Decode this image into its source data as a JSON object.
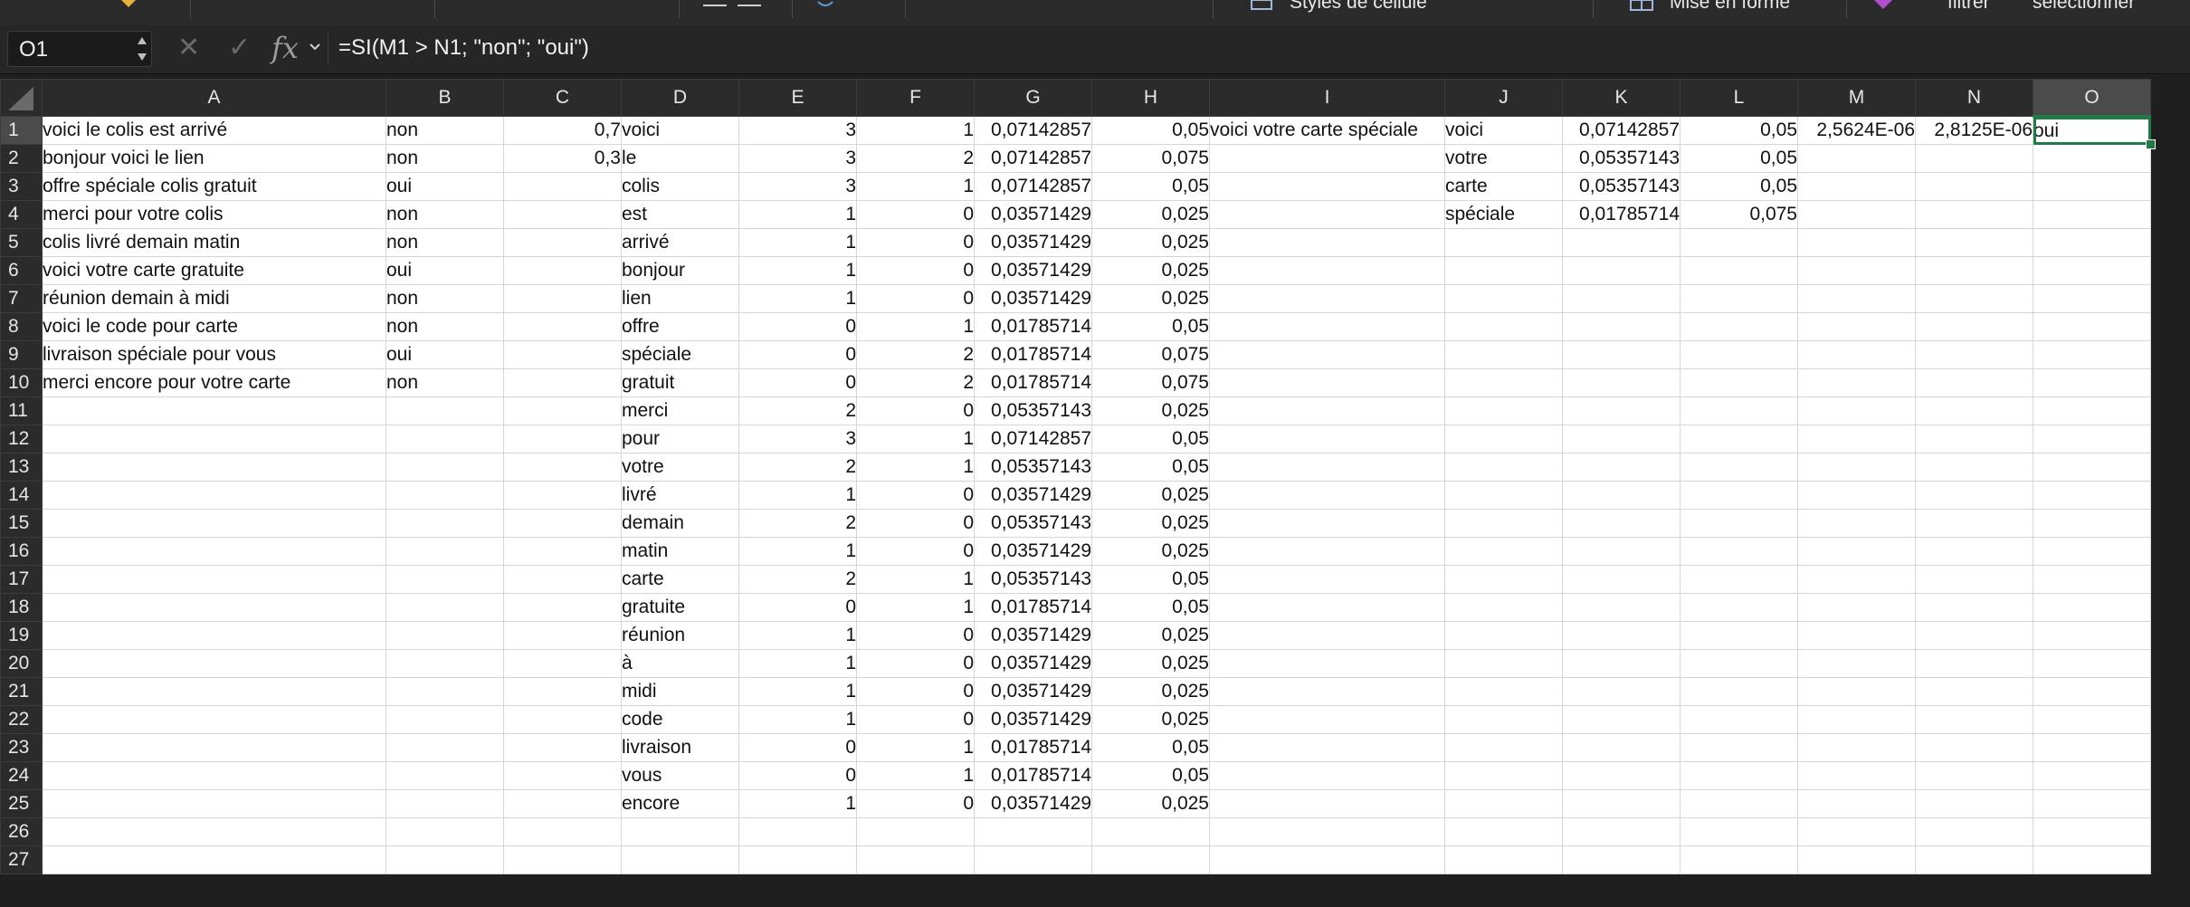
{
  "ribbon": {
    "cell_styles_label": "Styles de cellule",
    "format_as_table_label": "Mise en forme",
    "filter_label": "filtrer",
    "select_label": "sélectionner"
  },
  "formula_bar": {
    "name_box": "O1",
    "formula": "=SI(M1 > N1; \"non\"; \"oui\")"
  },
  "columns": [
    "A",
    "B",
    "C",
    "D",
    "E",
    "F",
    "G",
    "H",
    "I",
    "J",
    "K",
    "L",
    "M",
    "N",
    "O"
  ],
  "selected_column": "O",
  "selected_row": 1,
  "rows": [
    [
      "voici le colis est arrivé",
      "non",
      "0,7",
      "voici",
      "3",
      "1",
      "0,07142857",
      "0,05",
      "voici votre carte spéciale",
      "voici",
      "0,07142857",
      "0,05",
      "2,5624E-06",
      "2,8125E-06",
      "oui"
    ],
    [
      "bonjour voici le lien",
      "non",
      "0,3",
      "le",
      "3",
      "2",
      "0,07142857",
      "0,075",
      "",
      "votre",
      "0,05357143",
      "0,05",
      "",
      "",
      ""
    ],
    [
      "offre spéciale colis gratuit",
      "oui",
      "",
      "colis",
      "3",
      "1",
      "0,07142857",
      "0,05",
      "",
      "carte",
      "0,05357143",
      "0,05",
      "",
      "",
      ""
    ],
    [
      "merci pour votre colis",
      "non",
      "",
      "est",
      "1",
      "0",
      "0,03571429",
      "0,025",
      "",
      "spéciale",
      "0,01785714",
      "0,075",
      "",
      "",
      ""
    ],
    [
      "colis livré demain matin",
      "non",
      "",
      "arrivé",
      "1",
      "0",
      "0,03571429",
      "0,025",
      "",
      "",
      "",
      "",
      "",
      "",
      ""
    ],
    [
      "voici votre carte gratuite",
      "oui",
      "",
      "bonjour",
      "1",
      "0",
      "0,03571429",
      "0,025",
      "",
      "",
      "",
      "",
      "",
      "",
      ""
    ],
    [
      "réunion demain à midi",
      "non",
      "",
      "lien",
      "1",
      "0",
      "0,03571429",
      "0,025",
      "",
      "",
      "",
      "",
      "",
      "",
      ""
    ],
    [
      "voici le code pour carte",
      "non",
      "",
      "offre",
      "0",
      "1",
      "0,01785714",
      "0,05",
      "",
      "",
      "",
      "",
      "",
      "",
      ""
    ],
    [
      "livraison spéciale pour vous",
      "oui",
      "",
      "spéciale",
      "0",
      "2",
      "0,01785714",
      "0,075",
      "",
      "",
      "",
      "",
      "",
      "",
      ""
    ],
    [
      "merci encore pour votre carte",
      "non",
      "",
      "gratuit",
      "0",
      "2",
      "0,01785714",
      "0,075",
      "",
      "",
      "",
      "",
      "",
      "",
      ""
    ],
    [
      "",
      "",
      "",
      "merci",
      "2",
      "0",
      "0,05357143",
      "0,025",
      "",
      "",
      "",
      "",
      "",
      "",
      ""
    ],
    [
      "",
      "",
      "",
      "pour",
      "3",
      "1",
      "0,07142857",
      "0,05",
      "",
      "",
      "",
      "",
      "",
      "",
      ""
    ],
    [
      "",
      "",
      "",
      "votre",
      "2",
      "1",
      "0,05357143",
      "0,05",
      "",
      "",
      "",
      "",
      "",
      "",
      ""
    ],
    [
      "",
      "",
      "",
      "livré",
      "1",
      "0",
      "0,03571429",
      "0,025",
      "",
      "",
      "",
      "",
      "",
      "",
      ""
    ],
    [
      "",
      "",
      "",
      "demain",
      "2",
      "0",
      "0,05357143",
      "0,025",
      "",
      "",
      "",
      "",
      "",
      "",
      ""
    ],
    [
      "",
      "",
      "",
      "matin",
      "1",
      "0",
      "0,03571429",
      "0,025",
      "",
      "",
      "",
      "",
      "",
      "",
      ""
    ],
    [
      "",
      "",
      "",
      "carte",
      "2",
      "1",
      "0,05357143",
      "0,05",
      "",
      "",
      "",
      "",
      "",
      "",
      ""
    ],
    [
      "",
      "",
      "",
      "gratuite",
      "0",
      "1",
      "0,01785714",
      "0,05",
      "",
      "",
      "",
      "",
      "",
      "",
      ""
    ],
    [
      "",
      "",
      "",
      "réunion",
      "1",
      "0",
      "0,03571429",
      "0,025",
      "",
      "",
      "",
      "",
      "",
      "",
      ""
    ],
    [
      "",
      "",
      "",
      "à",
      "1",
      "0",
      "0,03571429",
      "0,025",
      "",
      "",
      "",
      "",
      "",
      "",
      ""
    ],
    [
      "",
      "",
      "",
      "midi",
      "1",
      "0",
      "0,03571429",
      "0,025",
      "",
      "",
      "",
      "",
      "",
      "",
      ""
    ],
    [
      "",
      "",
      "",
      "code",
      "1",
      "0",
      "0,03571429",
      "0,025",
      "",
      "",
      "",
      "",
      "",
      "",
      ""
    ],
    [
      "",
      "",
      "",
      "livraison",
      "0",
      "1",
      "0,01785714",
      "0,05",
      "",
      "",
      "",
      "",
      "",
      "",
      ""
    ],
    [
      "",
      "",
      "",
      "vous",
      "0",
      "1",
      "0,01785714",
      "0,05",
      "",
      "",
      "",
      "",
      "",
      "",
      ""
    ],
    [
      "",
      "",
      "",
      "encore",
      "1",
      "0",
      "0,03571429",
      "0,025",
      "",
      "",
      "",
      "",
      "",
      "",
      ""
    ],
    [
      "",
      "",
      "",
      "",
      "",
      "",
      "",
      "",
      "",
      "",
      "",
      "",
      "",
      "",
      ""
    ],
    [
      "",
      "",
      "",
      "",
      "",
      "",
      "",
      "",
      "",
      "",
      "",
      "",
      "",
      "",
      ""
    ]
  ],
  "colors": {
    "selection": "#1f7a45",
    "header_bg": "#2b2b2b",
    "grid_line": "#d6d6d6"
  }
}
